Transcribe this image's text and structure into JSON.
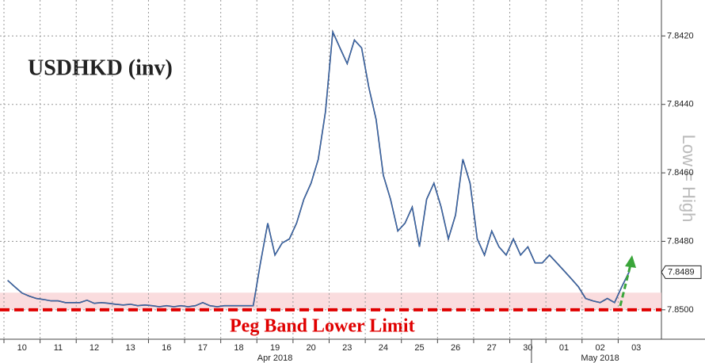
{
  "chart_data": {
    "type": "line",
    "title": "USDHKD (inv)",
    "y_axis_note": "Low = High",
    "peg_label": "Peg Band Lower Limit",
    "peg_limit": 7.85,
    "peg_band": [
      7.8495,
      7.85
    ],
    "categories": [
      null,
      null,
      "10",
      null,
      null,
      null,
      null,
      "11",
      null,
      null,
      null,
      null,
      "12",
      null,
      null,
      null,
      null,
      "13",
      null,
      null,
      null,
      null,
      "16",
      null,
      null,
      null,
      null,
      "17",
      null,
      null,
      null,
      null,
      "18",
      null,
      null,
      null,
      null,
      "19",
      null,
      null,
      null,
      null,
      "20",
      null,
      null,
      null,
      null,
      "23",
      null,
      null,
      null,
      null,
      "24",
      null,
      null,
      null,
      null,
      "25",
      null,
      null,
      null,
      null,
      "26",
      null,
      null,
      null,
      null,
      "27",
      null,
      null,
      null,
      null,
      "30",
      null,
      null,
      null,
      null,
      "01",
      null,
      null,
      null,
      null,
      "02",
      null,
      null,
      null,
      null,
      "03",
      null,
      null
    ],
    "x_period_labels": [
      "Apr 2018",
      "May 2018"
    ],
    "values": [
      7.84914,
      7.84933,
      7.84951,
      7.8496,
      7.84967,
      7.8497,
      7.84974,
      7.84974,
      7.84979,
      7.84979,
      7.84979,
      7.84972,
      7.84981,
      7.84979,
      7.84981,
      7.84984,
      7.84986,
      7.84984,
      7.84988,
      7.84986,
      7.84988,
      7.84991,
      7.84988,
      7.84991,
      7.84988,
      7.84991,
      7.84988,
      7.84979,
      7.84988,
      7.84991,
      7.84988,
      7.84988,
      7.84988,
      7.84988,
      7.84988,
      7.84863,
      7.84747,
      7.8484,
      7.84805,
      7.84793,
      7.84747,
      7.84677,
      7.8463,
      7.8456,
      7.84421,
      7.84188,
      7.84235,
      7.84281,
      7.84212,
      7.84235,
      7.84351,
      7.84444,
      7.84607,
      7.84677,
      7.8477,
      7.84747,
      7.847,
      7.84816,
      7.84677,
      7.8463,
      7.847,
      7.84793,
      7.84723,
      7.8456,
      7.8463,
      7.84793,
      7.8484,
      7.8477,
      7.84816,
      7.8484,
      7.84793,
      7.8484,
      7.84816,
      7.84863,
      7.84863,
      7.8484,
      7.84863,
      7.84886,
      7.84909,
      7.84933,
      7.84967,
      7.84974,
      7.84979,
      7.84967,
      7.84979,
      7.84933,
      7.8489,
      null,
      null,
      null
    ],
    "color": "#1c2f63",
    "ylim": [
      7.85086,
      7.84095
    ],
    "yticks": [
      {
        "value": 7.842,
        "label": "7.8420"
      },
      {
        "value": 7.844,
        "label": "7.8440"
      },
      {
        "value": 7.846,
        "label": "7.8460"
      },
      {
        "value": 7.848,
        "label": "7.8480"
      },
      {
        "value": 7.85,
        "label": "7.8500"
      }
    ],
    "grid": true
  }
}
